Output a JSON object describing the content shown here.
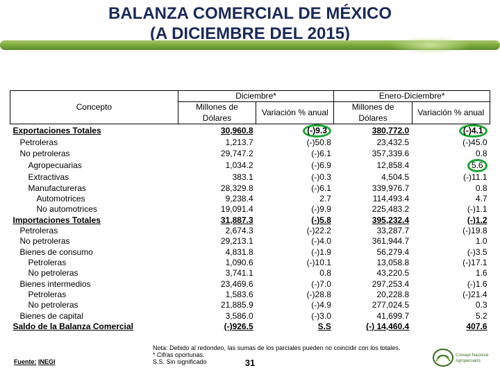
{
  "title_line1": "BALANZA COMERCIAL DE MÉXICO",
  "title_line2": "(A DICIEMBRE DEL 2015)",
  "headers": {
    "concepto": "Concepto",
    "dic": "Diciembre*",
    "ene_dic": "Enero-Diciembre*",
    "mill": "Millones de Dólares",
    "var": "Variación % anual"
  },
  "rows": [
    {
      "c": "Exportaciones Totales",
      "d1": "30,960.8",
      "d2": "(-)9.3",
      "e1": "380,772.0",
      "e2": "(-)4.1",
      "bold": true,
      "ul": true,
      "ind": 0,
      "circ_d2": true,
      "circ_e2": true
    },
    {
      "c": "Petroleras",
      "d1": "1,213.7",
      "d2": "(-)50.8",
      "e1": "23,432.5",
      "e2": "(-)45.0",
      "ind": 1
    },
    {
      "c": "No petroleras",
      "d1": "29,747.2",
      "d2": "(-)6.1",
      "e1": "357,339.6",
      "e2": "0.8",
      "ind": 1
    },
    {
      "c": "Agropecuarias",
      "d1": "1,034.2",
      "d2": "(-)6.9",
      "e1": "12,858.4",
      "e2": "5.6",
      "ind": 2,
      "circ_e2": true
    },
    {
      "c": "Extractivas",
      "d1": "383.1",
      "d2": "(-)0.3",
      "e1": "4,504.5",
      "e2": "(-)11.1",
      "ind": 2
    },
    {
      "c": "Manufactureras",
      "d1": "28,329.8",
      "d2": "(-)6.1",
      "e1": "339,976.7",
      "e2": "0.8",
      "ind": 2
    },
    {
      "c": "Automotrices",
      "d1": "9,238.4",
      "d2": "2.7",
      "e1": "114,493.4",
      "e2": "4.7",
      "ind": 3
    },
    {
      "c": "No automotrices",
      "d1": "19,091.4",
      "d2": "(-)9.9",
      "e1": "225,483.2",
      "e2": "(-)1.1",
      "ind": 3
    },
    {
      "c": "Importaciones Totales",
      "d1": "31,887.3",
      "d2": "(-)5.8",
      "e1": "395,232.4",
      "e2": "(-)1.2",
      "bold": true,
      "ul": true,
      "ind": 0
    },
    {
      "c": "Petroleras",
      "d1": "2,674.3",
      "d2": "(-)22.2",
      "e1": "33,287.7",
      "e2": "(-)19.8",
      "ind": 1
    },
    {
      "c": "No petroleras",
      "d1": "29,213.1",
      "d2": "(-)4.0",
      "e1": "361,944.7",
      "e2": "1.0",
      "ind": 1
    },
    {
      "c": "Bienes de consumo",
      "d1": "4,831.8",
      "d2": "(-)1.9",
      "e1": "56,279.4",
      "e2": "(-)3.5",
      "ind": 1
    },
    {
      "c": "Petroleras",
      "d1": "1,090.6",
      "d2": "(-)10.1",
      "e1": "13,058.8",
      "e2": "(-)17.1",
      "ind": 2
    },
    {
      "c": "No petroleras",
      "d1": "3,741.1",
      "d2": "0.8",
      "e1": "43,220.5",
      "e2": "1.6",
      "ind": 2
    },
    {
      "c": "Bienes intermedios",
      "d1": "23,469.6",
      "d2": "(-)7.0",
      "e1": "297,253.4",
      "e2": "(-)1.6",
      "ind": 1
    },
    {
      "c": "Petroleras",
      "d1": "1,583.6",
      "d2": "(-)28.8",
      "e1": "20,228.8",
      "e2": "(-)21.4",
      "ind": 2
    },
    {
      "c": "No petroleras",
      "d1": "21,885.9",
      "d2": "(-)4.9",
      "e1": "277,024.5",
      "e2": "0.3",
      "ind": 2
    },
    {
      "c": "Bienes de capital",
      "d1": "3,586.0",
      "d2": "(-)3.0",
      "e1": "41,699.7",
      "e2": "5.2",
      "ind": 1
    },
    {
      "c": "Saldo de la Balanza Comercial",
      "d1": "(-)926.5",
      "d2": "S.S",
      "e1": "(-)   14,460.4",
      "e2": "407.6",
      "bold": true,
      "ul": true,
      "ind": 0
    }
  ],
  "footer": {
    "fuente_label": "Fuente:",
    "fuente_val": "INEGI",
    "nota": "Nota:   Debido al redondeo, las sumas de los parciales pueden no coincidir con los totales.",
    "ast": "*         Cifras oportunas.",
    "ss": "S.S.     Sin significado"
  },
  "page_number": "31",
  "colors": {
    "title": "#1a2a5a",
    "circle": "#17a631",
    "deco_gradient": [
      "#a9c96f",
      "#7da93a",
      "#5c8a2f"
    ]
  }
}
